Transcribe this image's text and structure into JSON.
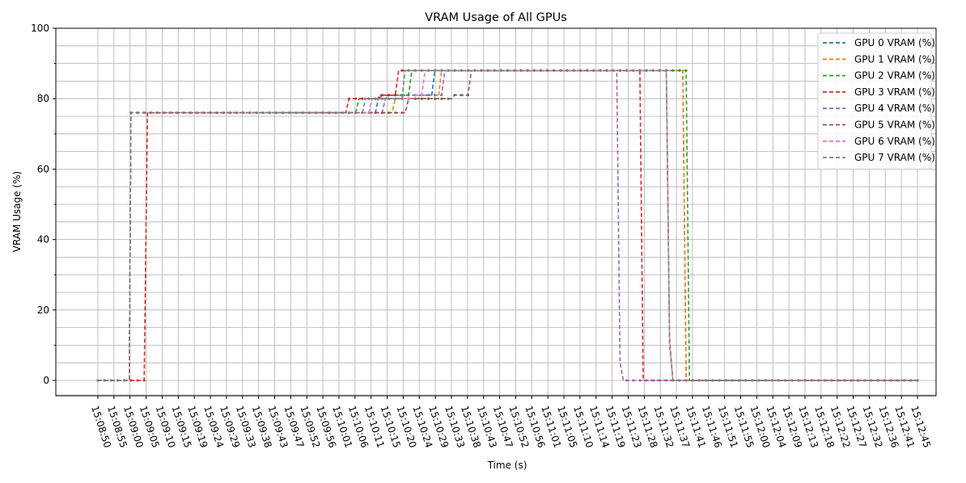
{
  "chart_data": {
    "type": "line",
    "title": "VRAM Usage of All GPUs",
    "xlabel": "Time (s)",
    "ylabel": "VRAM Usage (%)",
    "ylim": [
      0,
      100
    ],
    "yticks": [
      0,
      20,
      40,
      60,
      80,
      100
    ],
    "x_tick_labels": [
      "15:08:50",
      "15:08:55",
      "15:09:00",
      "15:09:05",
      "15:09:10",
      "15:09:15",
      "15:09:19",
      "15:09:24",
      "15:09:29",
      "15:09:33",
      "15:09:38",
      "15:09:43",
      "15:09:47",
      "15:09:52",
      "15:09:56",
      "15:10:01",
      "15:10:06",
      "15:10:11",
      "15:10:15",
      "15:10:20",
      "15:10:24",
      "15:10:29",
      "15:10:33",
      "15:10:38",
      "15:10:43",
      "15:10:47",
      "15:10:52",
      "15:10:56",
      "15:11:01",
      "15:11:05",
      "15:11:10",
      "15:11:14",
      "15:11:19",
      "15:11:23",
      "15:11:28",
      "15:11:32",
      "15:11:37",
      "15:11:41",
      "15:11:46",
      "15:11:51",
      "15:11:55",
      "15:12:00",
      "15:12:04",
      "15:12:09",
      "15:12:13",
      "15:12:18",
      "15:12:22",
      "15:12:27",
      "15:12:32",
      "15:12:36",
      "15:12:41",
      "15:12:45"
    ],
    "grid": true,
    "legend_position": "top-right",
    "series": [
      {
        "name": "GPU 0 VRAM (%)",
        "color": "#1f77b4",
        "points": [
          [
            0,
            0
          ],
          [
            9.5,
            0
          ],
          [
            10,
            76
          ],
          [
            84,
            76
          ],
          [
            85,
            81
          ],
          [
            101,
            81
          ],
          [
            102,
            88
          ],
          [
            177,
            88
          ],
          [
            178,
            0
          ],
          [
            248,
            0
          ]
        ]
      },
      {
        "name": "GPU 1 VRAM (%)",
        "color": "#ff7f0e",
        "points": [
          [
            0,
            0
          ],
          [
            9.5,
            0
          ],
          [
            10,
            76
          ],
          [
            89,
            76
          ],
          [
            90,
            80
          ],
          [
            103,
            80
          ],
          [
            104,
            88
          ],
          [
            177,
            88
          ],
          [
            178,
            0
          ],
          [
            248,
            0
          ]
        ]
      },
      {
        "name": "GPU 2 VRAM (%)",
        "color": "#2ca02c",
        "points": [
          [
            0,
            0
          ],
          [
            9.5,
            0
          ],
          [
            10,
            76
          ],
          [
            78,
            76
          ],
          [
            79,
            80
          ],
          [
            87,
            80
          ],
          [
            88,
            81
          ],
          [
            94,
            81
          ],
          [
            95,
            88
          ],
          [
            171,
            88
          ],
          [
            172,
            88
          ],
          [
            178,
            88
          ],
          [
            179,
            0
          ],
          [
            248,
            0
          ]
        ]
      },
      {
        "name": "GPU 3 VRAM (%)",
        "color": "#d62728",
        "points": [
          [
            0,
            0
          ],
          [
            14,
            0
          ],
          [
            15,
            76
          ],
          [
            75,
            76
          ],
          [
            76,
            80
          ],
          [
            85,
            80
          ],
          [
            86,
            81
          ],
          [
            90,
            81
          ],
          [
            91,
            88
          ],
          [
            164,
            88
          ],
          [
            165,
            0
          ],
          [
            248,
            0
          ]
        ]
      },
      {
        "name": "GPU 4 VRAM (%)",
        "color": "#9467bd",
        "points": [
          [
            0,
            0
          ],
          [
            9.5,
            0
          ],
          [
            10,
            76
          ],
          [
            86,
            76
          ],
          [
            87,
            80
          ],
          [
            97,
            80
          ],
          [
            98,
            81
          ],
          [
            104,
            81
          ],
          [
            105,
            88
          ],
          [
            157,
            88
          ],
          [
            158,
            5
          ],
          [
            159,
            0
          ],
          [
            248,
            0
          ]
        ]
      },
      {
        "name": "GPU 5 VRAM (%)",
        "color": "#8c564b",
        "points": [
          [
            0,
            0
          ],
          [
            9.5,
            0
          ],
          [
            10,
            76
          ],
          [
            93,
            76
          ],
          [
            94,
            80
          ],
          [
            107,
            80
          ],
          [
            108,
            81
          ],
          [
            112,
            81
          ],
          [
            113,
            88
          ],
          [
            172,
            88
          ],
          [
            173,
            10
          ],
          [
            174,
            0
          ],
          [
            248,
            0
          ]
        ]
      },
      {
        "name": "GPU 6 VRAM (%)",
        "color": "#e377c2",
        "points": [
          [
            0,
            0
          ],
          [
            9.5,
            0
          ],
          [
            10,
            76
          ],
          [
            82,
            76
          ],
          [
            83,
            80
          ],
          [
            95,
            80
          ],
          [
            96,
            81
          ],
          [
            98,
            81
          ],
          [
            99,
            88
          ],
          [
            172,
            88
          ],
          [
            173,
            10
          ],
          [
            174,
            0
          ],
          [
            248,
            0
          ]
        ]
      },
      {
        "name": "GPU 7 VRAM (%)",
        "color": "#7f7f7f",
        "points": [
          [
            0,
            0
          ],
          [
            9.5,
            0
          ],
          [
            10,
            76
          ],
          [
            80,
            76
          ],
          [
            81,
            80
          ],
          [
            92,
            80
          ],
          [
            93,
            88
          ],
          [
            172,
            88
          ],
          [
            173,
            12
          ],
          [
            174,
            0
          ],
          [
            248,
            0
          ]
        ]
      }
    ]
  }
}
